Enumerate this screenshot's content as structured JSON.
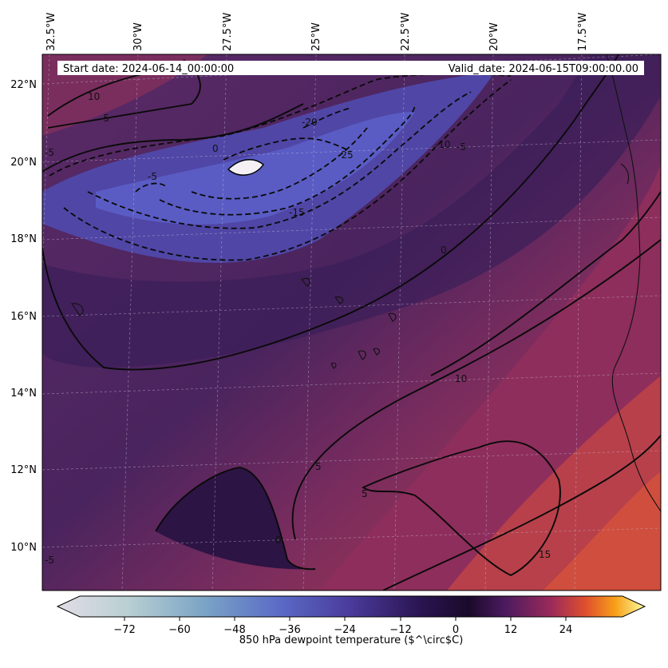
{
  "header": {
    "start_label": "Start date: 2024-06-14_00:00:00",
    "valid_label": "Valid_date: 2024-06-15T09:00:00.00"
  },
  "axes": {
    "lon_ticks": [
      "32.5°W",
      "30°W",
      "27.5°W",
      "25°W",
      "22.5°W",
      "20°W",
      "17.5°W"
    ],
    "lat_ticks": [
      "22°N",
      "20°N",
      "18°N",
      "16°N",
      "14°N",
      "12°N",
      "10°N"
    ]
  },
  "contour_labels": {
    "l1": "10",
    "l2": "-5",
    "l3": "0",
    "l4": "-20",
    "l5": "-25",
    "l6": "-10",
    "l7": "-5",
    "l8": "-5",
    "l9": "-15",
    "l10": "0",
    "l11": "10",
    "l12": "5",
    "l13": "5",
    "l14": "0",
    "l15": "15",
    "l16": "-5",
    "l17": "-5"
  },
  "colorbar": {
    "label": "850 hPa dewpoint temperature ($^\\circ$C)",
    "ticks": [
      "−72",
      "−60",
      "−48",
      "−36",
      "−24",
      "−12",
      "0",
      "12",
      "24"
    ],
    "range": [
      -84,
      36
    ],
    "colormap": [
      "#e2dde6",
      "#a8c6c8",
      "#6a96c8",
      "#5a5cc0",
      "#3c2a70",
      "#1e0f3a",
      "#4a1a5a",
      "#8a2a60",
      "#d24a3a",
      "#f08a1a",
      "#f6d040",
      "#fbfb9a"
    ]
  },
  "map": {
    "contours_dashed_values": [
      -25,
      -20,
      -15,
      -10,
      -5
    ],
    "contours_solid_values": [
      0,
      5,
      10,
      15
    ],
    "colors": {
      "dry": "#3a2a70",
      "very_dry": "#5a58c0",
      "moist": "#8a2e62",
      "very_moist": "#d24e40",
      "coast": "#111111"
    }
  }
}
